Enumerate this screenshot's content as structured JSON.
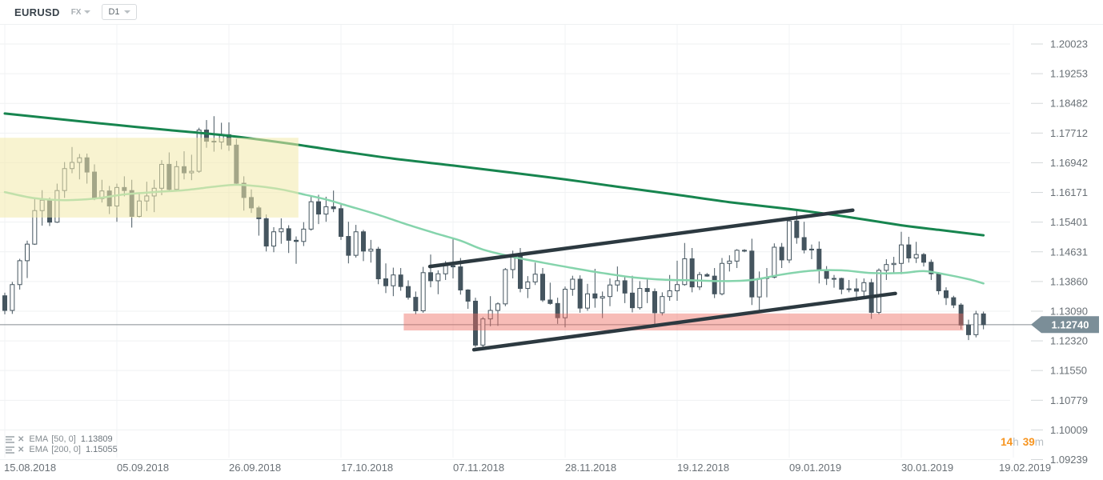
{
  "header": {
    "symbol": "EURUSD",
    "market": "FX",
    "timeframe": "D1"
  },
  "legend": [
    {
      "name": "EMA",
      "params": "[50, 0]",
      "value": "1.13809"
    },
    {
      "name": "EMA",
      "params": "[200, 0]",
      "value": "1.15055"
    }
  ],
  "countdown": {
    "hours": "14",
    "hours_unit": "h",
    "minutes": "39",
    "minutes_unit": "m"
  },
  "chart_data": {
    "type": "candlestick",
    "symbol": "EURUSD",
    "timeframe": "D1",
    "price_axis": {
      "labels": [
        "1.20023",
        "1.19253",
        "1.18482",
        "1.17712",
        "1.16942",
        "1.16171",
        "1.15401",
        "1.14631",
        "1.13860",
        "1.13090",
        "1.12320",
        "1.11550",
        "1.10779",
        "1.10009",
        "1.09239"
      ],
      "current_price": "1.12740"
    },
    "time_axis": {
      "labels": [
        "15.08.2018",
        "05.09.2018",
        "26.09.2018",
        "17.10.2018",
        "07.11.2018",
        "28.11.2018",
        "19.12.2018",
        "09.01.2019",
        "30.01.2019",
        "19.02.2019"
      ]
    },
    "style": {
      "candle": "#45555f",
      "bull_fill": "#ffffff",
      "trendline": "#2c3940",
      "grid": "#eff1f2",
      "axis_text": "#697076",
      "price_line": "#848c91",
      "badge": "#7b8e98",
      "countdown_accent": "#f7941e"
    },
    "candles": [
      [
        1.1349,
        1.1357,
        1.1301,
        1.1311
      ],
      [
        1.1311,
        1.1385,
        1.1302,
        1.1378
      ],
      [
        1.1378,
        1.1445,
        1.1365,
        1.144
      ],
      [
        1.144,
        1.1492,
        1.1395,
        1.1483
      ],
      [
        1.1483,
        1.1601,
        1.1481,
        1.157
      ],
      [
        1.157,
        1.1623,
        1.1531,
        1.1597
      ],
      [
        1.1597,
        1.1604,
        1.153,
        1.154
      ],
      [
        1.154,
        1.164,
        1.1538,
        1.1622
      ],
      [
        1.1622,
        1.1696,
        1.1603,
        1.1679
      ],
      [
        1.1679,
        1.1735,
        1.1667,
        1.1695
      ],
      [
        1.1695,
        1.1717,
        1.1651,
        1.1707
      ],
      [
        1.1707,
        1.1718,
        1.164,
        1.167
      ],
      [
        1.167,
        1.169,
        1.1597,
        1.1601
      ],
      [
        1.1601,
        1.165,
        1.1591,
        1.1621
      ],
      [
        1.1621,
        1.1634,
        1.1561,
        1.1582
      ],
      [
        1.1582,
        1.164,
        1.1541,
        1.163
      ],
      [
        1.163,
        1.1659,
        1.1607,
        1.1622
      ],
      [
        1.1622,
        1.165,
        1.1526,
        1.1555
      ],
      [
        1.1555,
        1.1617,
        1.1552,
        1.1595
      ],
      [
        1.1595,
        1.1645,
        1.1569,
        1.1608
      ],
      [
        1.1608,
        1.165,
        1.1566,
        1.1628
      ],
      [
        1.1628,
        1.1701,
        1.161,
        1.169
      ],
      [
        1.169,
        1.1721,
        1.162,
        1.1625
      ],
      [
        1.1625,
        1.1699,
        1.162,
        1.1684
      ],
      [
        1.1684,
        1.1724,
        1.1651,
        1.1668
      ],
      [
        1.1668,
        1.1715,
        1.1649,
        1.1672
      ],
      [
        1.1672,
        1.1785,
        1.1668,
        1.1779
      ],
      [
        1.1779,
        1.1805,
        1.1733,
        1.175
      ],
      [
        1.175,
        1.1815,
        1.1723,
        1.1748
      ],
      [
        1.1748,
        1.1798,
        1.1729,
        1.1767
      ],
      [
        1.1767,
        1.1799,
        1.1725,
        1.174
      ],
      [
        1.174,
        1.1756,
        1.1637,
        1.1641
      ],
      [
        1.1641,
        1.1659,
        1.157,
        1.1604
      ],
      [
        1.1604,
        1.1625,
        1.1564,
        1.1577
      ],
      [
        1.1577,
        1.1582,
        1.1505,
        1.1549
      ],
      [
        1.1549,
        1.156,
        1.1464,
        1.1478
      ],
      [
        1.1478,
        1.1527,
        1.1462,
        1.1515
      ],
      [
        1.1515,
        1.155,
        1.1484,
        1.1523
      ],
      [
        1.1523,
        1.1532,
        1.146,
        1.1493
      ],
      [
        1.1493,
        1.1503,
        1.1432,
        1.149
      ],
      [
        1.149,
        1.154,
        1.1478,
        1.1522
      ],
      [
        1.1522,
        1.161,
        1.1518,
        1.1593
      ],
      [
        1.1593,
        1.1611,
        1.1535,
        1.1561
      ],
      [
        1.1561,
        1.1606,
        1.1541,
        1.158
      ],
      [
        1.158,
        1.1622,
        1.1566,
        1.1575
      ],
      [
        1.1575,
        1.1585,
        1.1494,
        1.1503
      ],
      [
        1.1503,
        1.1541,
        1.1433,
        1.1454
      ],
      [
        1.1454,
        1.1533,
        1.1448,
        1.1515
      ],
      [
        1.1515,
        1.152,
        1.1439,
        1.1465
      ],
      [
        1.1465,
        1.1494,
        1.1435,
        1.147
      ],
      [
        1.147,
        1.1476,
        1.1379,
        1.1393
      ],
      [
        1.1393,
        1.1433,
        1.1356,
        1.1375
      ],
      [
        1.1375,
        1.1422,
        1.1348,
        1.1403
      ],
      [
        1.1403,
        1.1421,
        1.1362,
        1.1373
      ],
      [
        1.1373,
        1.1389,
        1.1339,
        1.1345
      ],
      [
        1.1345,
        1.136,
        1.1301,
        1.131
      ],
      [
        1.131,
        1.1424,
        1.1305,
        1.1409
      ],
      [
        1.1409,
        1.1456,
        1.1371,
        1.1388
      ],
      [
        1.1388,
        1.1415,
        1.1353,
        1.1406
      ],
      [
        1.1406,
        1.1439,
        1.139,
        1.1427
      ],
      [
        1.1427,
        1.15,
        1.1394,
        1.1424
      ],
      [
        1.1424,
        1.1447,
        1.1352,
        1.1364
      ],
      [
        1.1364,
        1.1366,
        1.1315,
        1.1335
      ],
      [
        1.1335,
        1.1344,
        1.1216,
        1.1221
      ],
      [
        1.1221,
        1.1294,
        1.1213,
        1.1289
      ],
      [
        1.1289,
        1.1348,
        1.127,
        1.1311
      ],
      [
        1.1311,
        1.1332,
        1.1271,
        1.1328
      ],
      [
        1.1328,
        1.1421,
        1.1322,
        1.1417
      ],
      [
        1.1417,
        1.1466,
        1.1394,
        1.1454
      ],
      [
        1.1454,
        1.1473,
        1.1358,
        1.1368
      ],
      [
        1.1368,
        1.14,
        1.1343,
        1.1385
      ],
      [
        1.1385,
        1.1435,
        1.1377,
        1.1405
      ],
      [
        1.1405,
        1.1421,
        1.1333,
        1.1338
      ],
      [
        1.1338,
        1.1383,
        1.1326,
        1.1329
      ],
      [
        1.1329,
        1.1344,
        1.1276,
        1.1292
      ],
      [
        1.1292,
        1.1373,
        1.1267,
        1.1366
      ],
      [
        1.1366,
        1.1401,
        1.1349,
        1.1392
      ],
      [
        1.1392,
        1.1402,
        1.1305,
        1.1317
      ],
      [
        1.1317,
        1.138,
        1.131,
        1.1354
      ],
      [
        1.1354,
        1.1419,
        1.1318,
        1.1343
      ],
      [
        1.1343,
        1.136,
        1.1291,
        1.1347
      ],
      [
        1.1347,
        1.1394,
        1.1322,
        1.1377
      ],
      [
        1.1377,
        1.1425,
        1.136,
        1.1388
      ],
      [
        1.1388,
        1.14,
        1.133,
        1.1356
      ],
      [
        1.1356,
        1.1401,
        1.1306,
        1.1318
      ],
      [
        1.1318,
        1.1387,
        1.1313,
        1.1368
      ],
      [
        1.1368,
        1.1395,
        1.133,
        1.136
      ],
      [
        1.136,
        1.1368,
        1.127,
        1.1305
      ],
      [
        1.1305,
        1.1358,
        1.1298,
        1.1347
      ],
      [
        1.1347,
        1.1403,
        1.1336,
        1.1362
      ],
      [
        1.1362,
        1.144,
        1.1336,
        1.1378
      ],
      [
        1.1378,
        1.1486,
        1.1375,
        1.1445
      ],
      [
        1.1445,
        1.1473,
        1.1358,
        1.1372
      ],
      [
        1.1372,
        1.1411,
        1.1364,
        1.1404
      ],
      [
        1.1404,
        1.1408,
        1.1398,
        1.14
      ],
      [
        1.14,
        1.1421,
        1.1343,
        1.1354
      ],
      [
        1.1354,
        1.1447,
        1.135,
        1.1433
      ],
      [
        1.1433,
        1.1454,
        1.1412,
        1.1439
      ],
      [
        1.1439,
        1.147,
        1.1421,
        1.1467
      ],
      [
        1.1467,
        1.147,
        1.1462,
        1.1465
      ],
      [
        1.1465,
        1.1497,
        1.1325,
        1.1346
      ],
      [
        1.1346,
        1.1412,
        1.1309,
        1.1394
      ],
      [
        1.1394,
        1.1421,
        1.1345,
        1.1397
      ],
      [
        1.1397,
        1.1485,
        1.1394,
        1.1475
      ],
      [
        1.1475,
        1.1486,
        1.1421,
        1.1442
      ],
      [
        1.1442,
        1.1545,
        1.1434,
        1.1543
      ],
      [
        1.1543,
        1.157,
        1.1484,
        1.15
      ],
      [
        1.15,
        1.1541,
        1.1459,
        1.1468
      ],
      [
        1.1468,
        1.1482,
        1.1444,
        1.147
      ],
      [
        1.147,
        1.149,
        1.1381,
        1.1414
      ],
      [
        1.1414,
        1.1426,
        1.1377,
        1.1394
      ],
      [
        1.1394,
        1.1403,
        1.137,
        1.1394
      ],
      [
        1.1394,
        1.1396,
        1.1353,
        1.1366
      ],
      [
        1.1366,
        1.139,
        1.1358,
        1.1367
      ],
      [
        1.1367,
        1.1394,
        1.1336,
        1.1361
      ],
      [
        1.1361,
        1.1394,
        1.1346,
        1.1383
      ],
      [
        1.1383,
        1.1393,
        1.1289,
        1.1306
      ],
      [
        1.1306,
        1.142,
        1.1301,
        1.1415
      ],
      [
        1.1415,
        1.1444,
        1.139,
        1.143
      ],
      [
        1.143,
        1.145,
        1.1407,
        1.1433
      ],
      [
        1.1433,
        1.1515,
        1.1405,
        1.1481
      ],
      [
        1.1481,
        1.1502,
        1.1435,
        1.1447
      ],
      [
        1.1447,
        1.1489,
        1.1434,
        1.1456
      ],
      [
        1.1456,
        1.146,
        1.1425,
        1.1436
      ],
      [
        1.1436,
        1.1443,
        1.139,
        1.1406
      ],
      [
        1.1406,
        1.141,
        1.1352,
        1.1362
      ],
      [
        1.1362,
        1.1371,
        1.1325,
        1.1344
      ],
      [
        1.1344,
        1.1349,
        1.1317,
        1.1325
      ],
      [
        1.1325,
        1.133,
        1.1262,
        1.1273
      ],
      [
        1.1273,
        1.1287,
        1.1234,
        1.1248
      ],
      [
        1.1248,
        1.131,
        1.1241,
        1.1302
      ],
      [
        1.1302,
        1.1308,
        1.1262,
        1.1274
      ]
    ],
    "indicators": [
      {
        "id": "ema50",
        "label": "EMA [50, 0]",
        "value": "1.13809",
        "color": "#85d4ac",
        "width": 2.5,
        "points": [
          [
            0,
            1.1618
          ],
          [
            4,
            1.1602
          ],
          [
            8,
            1.1597
          ],
          [
            12,
            1.1601
          ],
          [
            16,
            1.1612
          ],
          [
            20,
            1.1618
          ],
          [
            24,
            1.1623
          ],
          [
            28,
            1.1632
          ],
          [
            31,
            1.1637
          ],
          [
            34,
            1.1633
          ],
          [
            37,
            1.1625
          ],
          [
            40,
            1.1612
          ],
          [
            43,
            1.1599
          ],
          [
            46,
            1.1582
          ],
          [
            50,
            1.1559
          ],
          [
            54,
            1.1533
          ],
          [
            58,
            1.1509
          ],
          [
            61,
            1.1492
          ],
          [
            64,
            1.1469
          ],
          [
            68,
            1.145
          ],
          [
            72,
            1.1435
          ],
          [
            76,
            1.1421
          ],
          [
            80,
            1.1408
          ],
          [
            84,
            1.1397
          ],
          [
            88,
            1.1391
          ],
          [
            92,
            1.1389
          ],
          [
            96,
            1.1387
          ],
          [
            100,
            1.139
          ],
          [
            104,
            1.1404
          ],
          [
            108,
            1.1414
          ],
          [
            112,
            1.1415
          ],
          [
            116,
            1.1408
          ],
          [
            120,
            1.1408
          ],
          [
            123,
            1.1413
          ],
          [
            126,
            1.1404
          ],
          [
            129,
            1.1392
          ],
          [
            131,
            1.1381
          ]
        ]
      },
      {
        "id": "ema200",
        "label": "EMA [200, 0]",
        "value": "1.15055",
        "color": "#17854f",
        "width": 3,
        "points": [
          [
            0,
            1.1822
          ],
          [
            8,
            1.1806
          ],
          [
            15,
            1.1792
          ],
          [
            22,
            1.1779
          ],
          [
            30,
            1.1764
          ],
          [
            38,
            1.1744
          ],
          [
            45,
            1.1724
          ],
          [
            52,
            1.1705
          ],
          [
            60,
            1.1687
          ],
          [
            68,
            1.1668
          ],
          [
            75,
            1.1651
          ],
          [
            82,
            1.1632
          ],
          [
            90,
            1.1611
          ],
          [
            97,
            1.1592
          ],
          [
            105,
            1.1574
          ],
          [
            112,
            1.1556
          ],
          [
            120,
            1.1532
          ],
          [
            125,
            1.152
          ],
          [
            131,
            1.1506
          ]
        ]
      }
    ],
    "zones": [
      {
        "id": "highlight-zone-yellow",
        "i1": -0.7,
        "i2": 39.3,
        "p1": 1.1759,
        "p2": 1.1552,
        "color": "#f3e9a9",
        "opacity": 0.55
      },
      {
        "id": "support-zone-red",
        "i1": 53.4,
        "i2": 128.3,
        "p1": 1.1303,
        "p2": 1.1259,
        "color": "#ee6a5f",
        "opacity": 0.45
      }
    ],
    "trendlines": [
      {
        "id": "wedge-upper-trendline",
        "i1": 56.9,
        "p1": 1.1425,
        "i2": 113.5,
        "p2": 1.1571
      },
      {
        "id": "wedge-lower-trendline",
        "i1": 62.8,
        "p1": 1.1209,
        "i2": 119.2,
        "p2": 1.1355
      }
    ],
    "price_line": {
      "price": 1.1274
    }
  }
}
